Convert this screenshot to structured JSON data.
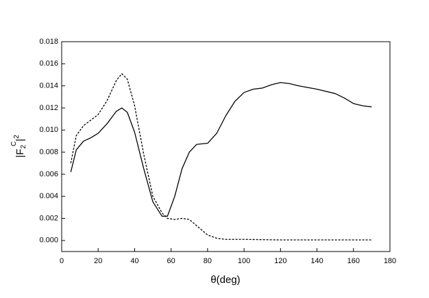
{
  "chart_data": {
    "type": "line",
    "xlabel": "θ(deg)",
    "ylabel": {
      "base": "|F",
      "sub": "2",
      "sup": "C",
      "close": "|",
      "power": "2"
    },
    "xlim": [
      0,
      180
    ],
    "xticks": [
      0,
      20,
      40,
      60,
      80,
      100,
      120,
      140,
      160,
      180
    ],
    "ylim": [
      -0.001,
      0.018
    ],
    "yticks": [
      {
        "value": 0,
        "label": "0.000"
      },
      {
        "value": 0.002,
        "label": "0.002"
      },
      {
        "value": 0.004,
        "label": "0.004"
      },
      {
        "value": 0.006,
        "label": "0.006"
      },
      {
        "value": 0.008,
        "label": "0.008"
      },
      {
        "value": 0.01,
        "label": "0.010"
      },
      {
        "value": 0.012,
        "label": "0.012"
      },
      {
        "value": 0.014,
        "label": "0.014"
      },
      {
        "value": 0.016,
        "label": "0.016"
      },
      {
        "value": 0.018,
        "label": "0.018"
      }
    ],
    "series": [
      {
        "color": "#000000",
        "dash": false,
        "x": [
          5,
          8,
          12,
          16,
          20,
          25,
          30,
          33,
          36,
          40,
          45,
          50,
          55,
          58,
          62,
          66,
          70,
          74,
          80,
          85,
          90,
          95,
          100,
          105,
          110,
          115,
          120,
          125,
          130,
          140,
          150,
          155,
          160,
          165,
          170
        ],
        "values": [
          0.0062,
          0.0082,
          0.009,
          0.0093,
          0.0097,
          0.0106,
          0.0117,
          0.012,
          0.0116,
          0.0098,
          0.0065,
          0.0035,
          0.0022,
          0.0022,
          0.004,
          0.0065,
          0.008,
          0.0087,
          0.0088,
          0.0097,
          0.0113,
          0.0126,
          0.0134,
          0.0137,
          0.0138,
          0.0141,
          0.0143,
          0.0142,
          0.014,
          0.0137,
          0.0133,
          0.0129,
          0.0124,
          0.0122,
          0.0121
        ]
      },
      {
        "color": "#000000",
        "dash": true,
        "x": [
          5,
          8,
          12,
          16,
          20,
          25,
          30,
          33,
          36,
          40,
          45,
          50,
          55,
          58,
          62,
          66,
          70,
          75,
          80,
          85,
          90,
          100,
          120,
          140,
          170
        ],
        "values": [
          0.007,
          0.0095,
          0.0104,
          0.0109,
          0.0114,
          0.0127,
          0.0145,
          0.0151,
          0.0146,
          0.0122,
          0.0078,
          0.004,
          0.0025,
          0.002,
          0.0019,
          0.002,
          0.0019,
          0.0012,
          0.0005,
          0.0002,
          0.0001,
          0.0001,
          5e-05,
          5e-05,
          5e-05
        ]
      }
    ]
  }
}
